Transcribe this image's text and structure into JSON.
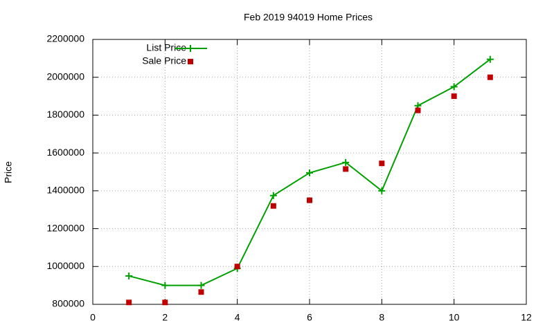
{
  "chart_data": {
    "type": "line",
    "title": "Feb 2019 94019 Home Prices",
    "y_label": "Price",
    "x": [
      1,
      2,
      3,
      4,
      5,
      6,
      7,
      8,
      9,
      10,
      11
    ],
    "series": [
      {
        "name": "List Price",
        "color": "#00a000",
        "style": "linespoints",
        "values": [
          950000,
          900000,
          900000,
          990000,
          1375000,
          1495000,
          1550000,
          1400000,
          1850000,
          1950000,
          2095000
        ]
      },
      {
        "name": "Sale Price",
        "color": "#c00000",
        "style": "points",
        "values": [
          810000,
          810000,
          865000,
          1000000,
          1320000,
          1350000,
          1515000,
          1545000,
          1825000,
          1900000,
          2000000
        ]
      }
    ],
    "xlim": [
      0,
      12
    ],
    "xticks": [
      0,
      2,
      4,
      6,
      8,
      10,
      12
    ],
    "ylim": [
      800000,
      2200000
    ],
    "yticks": [
      800000,
      1000000,
      1200000,
      1400000,
      1600000,
      1800000,
      2000000,
      2200000
    ],
    "grid": true,
    "legend": "top-left"
  }
}
